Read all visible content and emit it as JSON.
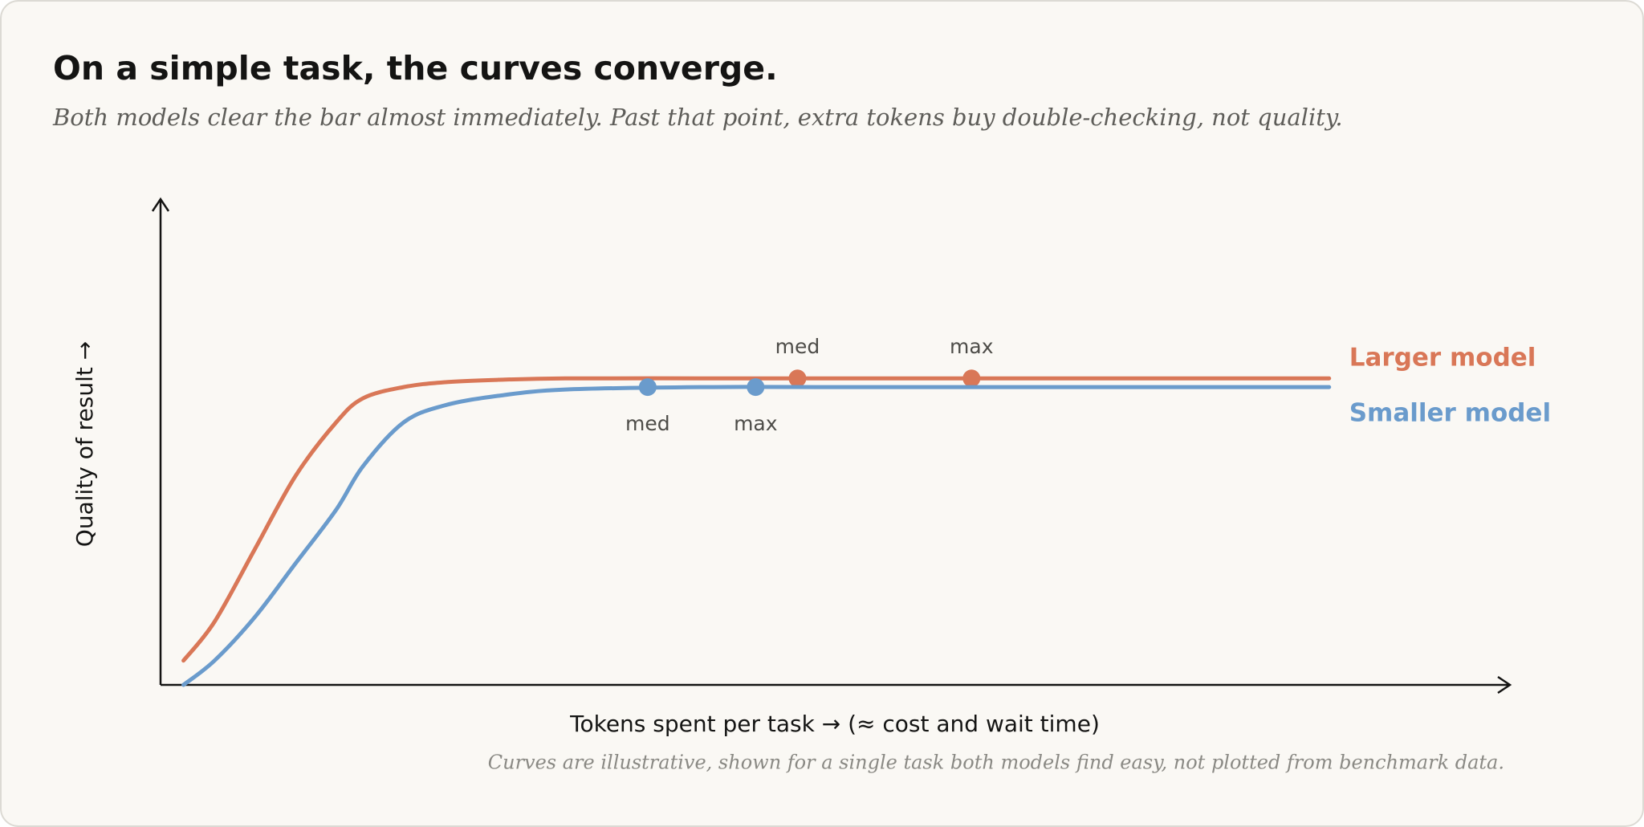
{
  "chart_data": {
    "type": "line",
    "title": "On a simple task, the curves converge.",
    "subtitle": "Both models clear the bar almost immediately. Past that point, extra tokens buy double-checking, not quality.",
    "x_label": "Tokens spent per task → (≈ cost and wait time)",
    "y_label": "Quality of result →",
    "note": "Curves are illustrative, shown for a single task both models find easy, not plotted from benchmark data.",
    "xlim": [
      0,
      100
    ],
    "ylim": [
      0,
      100
    ],
    "x": [
      1.7,
      4,
      7,
      10,
      13,
      15,
      18,
      21,
      25,
      30,
      40,
      50,
      60,
      70,
      86.6
    ],
    "series": [
      {
        "name": "Larger model",
        "color": "#d97757",
        "values": [
          5,
          13,
          28,
          43,
          54,
          59,
          61.3,
          62.3,
          62.8,
          63.1,
          63.1,
          63.1,
          63.1,
          63.1,
          63.1
        ],
        "points": {
          "labels": [
            "med",
            "max"
          ],
          "x": [
            47.2,
            60.1
          ],
          "values": [
            63.1,
            63.1
          ]
        }
      },
      {
        "name": "Smaller model",
        "color": "#6a9bcc",
        "values": [
          0,
          5,
          14,
          25,
          36,
          45,
          54,
          57.5,
          59.5,
          60.8,
          61.3,
          61.3,
          61.3,
          61.3,
          61.3
        ],
        "points": {
          "labels": [
            "med",
            "max"
          ],
          "x": [
            36.1,
            44.1
          ],
          "values": [
            61.3,
            61.3
          ]
        }
      }
    ]
  }
}
